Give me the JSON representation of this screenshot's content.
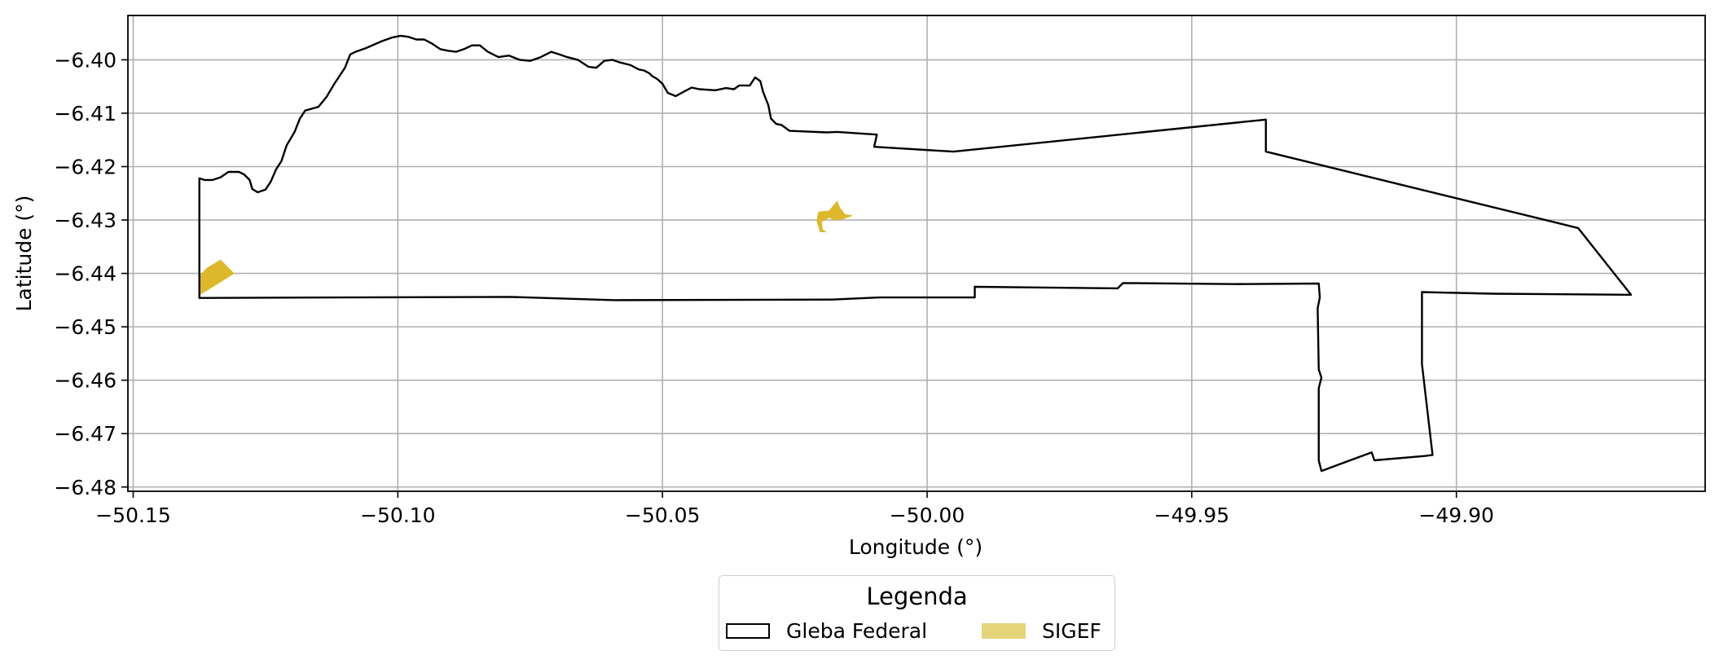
{
  "map": {
    "xlabel": "Longitude (°)",
    "ylabel": "Latitude (°)",
    "xlim": [
      -50.151,
      -49.853
    ],
    "ylim": [
      -6.4808,
      -6.3917
    ],
    "x_ticks": [
      {
        "value": -50.15,
        "label": "−50.15"
      },
      {
        "value": -50.1,
        "label": "−50.10"
      },
      {
        "value": -50.05,
        "label": "−50.05"
      },
      {
        "value": -50.0,
        "label": "−50.00"
      },
      {
        "value": -49.95,
        "label": "−49.95"
      },
      {
        "value": -49.9,
        "label": "−49.90"
      }
    ],
    "y_ticks": [
      {
        "value": -6.4,
        "label": "−6.40"
      },
      {
        "value": -6.41,
        "label": "−6.41"
      },
      {
        "value": -6.42,
        "label": "−6.42"
      },
      {
        "value": -6.43,
        "label": "−6.43"
      },
      {
        "value": -6.44,
        "label": "−6.44"
      },
      {
        "value": -6.45,
        "label": "−6.45"
      },
      {
        "value": -6.46,
        "label": "−6.46"
      },
      {
        "value": -6.47,
        "label": "−6.47"
      },
      {
        "value": -6.48,
        "label": "−6.48"
      }
    ],
    "grid": true,
    "colors": {
      "gleba_edge": "#000000",
      "sigef_fill": "#ddb82a",
      "grid": "#b0b0b0"
    },
    "gleba_federal": [
      [
        -50.1375,
        -6.4446
      ],
      [
        -50.079,
        -6.4444
      ],
      [
        -50.059,
        -6.445
      ],
      [
        -50.018,
        -6.4449
      ],
      [
        -50.009,
        -6.4445
      ],
      [
        -49.991,
        -6.4445
      ],
      [
        -49.991,
        -6.4425
      ],
      [
        -49.964,
        -6.4428
      ],
      [
        -49.963,
        -6.4418
      ],
      [
        -49.942,
        -6.442
      ],
      [
        -49.926,
        -6.4419
      ],
      [
        -49.9258,
        -6.4445
      ],
      [
        -49.9262,
        -6.4465
      ],
      [
        -49.926,
        -6.458
      ],
      [
        -49.9255,
        -6.4595
      ],
      [
        -49.926,
        -6.4615
      ],
      [
        -49.926,
        -6.475
      ],
      [
        -49.9255,
        -6.477
      ],
      [
        -49.916,
        -6.4735
      ],
      [
        -49.9155,
        -6.475
      ],
      [
        -49.906,
        -6.4742
      ],
      [
        -49.9045,
        -6.474
      ],
      [
        -49.9065,
        -6.457
      ],
      [
        -49.9065,
        -6.4435
      ],
      [
        -49.893,
        -6.4438
      ],
      [
        -49.867,
        -6.444
      ],
      [
        -49.877,
        -6.4315
      ],
      [
        -49.936,
        -6.4172
      ],
      [
        -49.936,
        -6.4112
      ],
      [
        -49.995,
        -6.4172
      ],
      [
        -50.01,
        -6.4163
      ],
      [
        -50.0095,
        -6.414
      ],
      [
        -50.017,
        -6.4135
      ],
      [
        -50.019,
        -6.4136
      ],
      [
        -50.026,
        -6.4133
      ],
      [
        -50.0275,
        -6.4122
      ],
      [
        -50.0285,
        -6.412
      ],
      [
        -50.0295,
        -6.411
      ],
      [
        -50.03,
        -6.4085
      ],
      [
        -50.031,
        -6.406
      ],
      [
        -50.0315,
        -6.404
      ],
      [
        -50.0325,
        -6.4033
      ],
      [
        -50.0335,
        -6.4048
      ],
      [
        -50.0355,
        -6.4048
      ],
      [
        -50.0365,
        -6.4055
      ],
      [
        -50.038,
        -6.4053
      ],
      [
        -50.04,
        -6.4057
      ],
      [
        -50.043,
        -6.4055
      ],
      [
        -50.0445,
        -6.4052
      ],
      [
        -50.046,
        -6.406
      ],
      [
        -50.0475,
        -6.4068
      ],
      [
        -50.049,
        -6.4062
      ],
      [
        -50.05,
        -6.4045
      ],
      [
        -50.051,
        -6.4036
      ],
      [
        -50.052,
        -6.403
      ],
      [
        -50.0525,
        -6.4025
      ],
      [
        -50.0535,
        -6.402
      ],
      [
        -50.0545,
        -6.4018
      ],
      [
        -50.056,
        -6.401
      ],
      [
        -50.058,
        -6.4005
      ],
      [
        -50.0595,
        -6.4
      ],
      [
        -50.061,
        -6.4002
      ],
      [
        -50.0625,
        -6.4015
      ],
      [
        -50.064,
        -6.4013
      ],
      [
        -50.066,
        -6.4
      ],
      [
        -50.068,
        -6.3995
      ],
      [
        -50.0695,
        -6.399
      ],
      [
        -50.071,
        -6.3985
      ],
      [
        -50.073,
        -6.3995
      ],
      [
        -50.075,
        -6.4002
      ],
      [
        -50.077,
        -6.4
      ],
      [
        -50.079,
        -6.3992
      ],
      [
        -50.081,
        -6.3995
      ],
      [
        -50.083,
        -6.3985
      ],
      [
        -50.0845,
        -6.3973
      ],
      [
        -50.086,
        -6.3973
      ],
      [
        -50.0875,
        -6.398
      ],
      [
        -50.089,
        -6.3985
      ],
      [
        -50.0905,
        -6.3983
      ],
      [
        -50.092,
        -6.398
      ],
      [
        -50.0935,
        -6.397
      ],
      [
        -50.095,
        -6.3962
      ],
      [
        -50.0965,
        -6.3962
      ],
      [
        -50.098,
        -6.3957
      ],
      [
        -50.0995,
        -6.3955
      ],
      [
        -50.101,
        -6.3958
      ],
      [
        -50.103,
        -6.3965
      ],
      [
        -50.106,
        -6.3978
      ],
      [
        -50.108,
        -6.3985
      ],
      [
        -50.109,
        -6.399
      ],
      [
        -50.11,
        -6.4015
      ],
      [
        -50.112,
        -6.4045
      ],
      [
        -50.1135,
        -6.407
      ],
      [
        -50.115,
        -6.4088
      ],
      [
        -50.1175,
        -6.4095
      ],
      [
        -50.1185,
        -6.411
      ],
      [
        -50.1195,
        -6.4135
      ],
      [
        -50.121,
        -6.416
      ],
      [
        -50.122,
        -6.419
      ],
      [
        -50.123,
        -6.4205
      ],
      [
        -50.124,
        -6.4228
      ],
      [
        -50.125,
        -6.4243
      ],
      [
        -50.1265,
        -6.4248
      ],
      [
        -50.1275,
        -6.4242
      ],
      [
        -50.128,
        -6.4225
      ],
      [
        -50.129,
        -6.4215
      ],
      [
        -50.13,
        -6.421
      ],
      [
        -50.132,
        -6.421
      ],
      [
        -50.1335,
        -6.422
      ],
      [
        -50.135,
        -6.4225
      ],
      [
        -50.1365,
        -6.4225
      ],
      [
        -50.1375,
        -6.4222
      ],
      [
        -50.1375,
        -6.4446
      ]
    ],
    "sigef": [
      [
        [
          -50.1375,
          -6.444
        ],
        [
          -50.1375,
          -6.4405
        ],
        [
          -50.136,
          -6.439
        ],
        [
          -50.1335,
          -6.4375
        ],
        [
          -50.131,
          -6.44
        ],
        [
          -50.135,
          -6.4425
        ]
      ],
      [
        [
          -50.0205,
          -6.4285
        ],
        [
          -50.0185,
          -6.4283
        ],
        [
          -50.017,
          -6.4265
        ],
        [
          -50.0165,
          -6.4278
        ],
        [
          -50.0155,
          -6.429
        ],
        [
          -50.0142,
          -6.4292
        ],
        [
          -50.016,
          -6.4298
        ],
        [
          -50.0175,
          -6.43
        ],
        [
          -50.0185,
          -6.4295
        ],
        [
          -50.02,
          -6.4303
        ],
        [
          -50.0198,
          -6.4318
        ],
        [
          -50.0192,
          -6.4322
        ],
        [
          -50.0202,
          -6.4322
        ],
        [
          -50.0208,
          -6.4302
        ]
      ]
    ]
  },
  "legend": {
    "title": "Legenda",
    "items": [
      {
        "label": "Gleba Federal",
        "color": "#000000"
      },
      {
        "label": "SIGEF",
        "color": "#e6d47a"
      }
    ]
  }
}
